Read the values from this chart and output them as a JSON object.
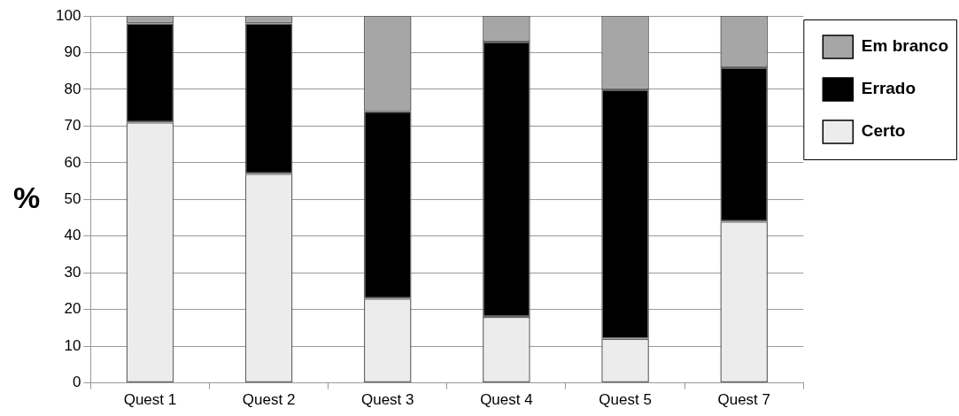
{
  "chart_data": {
    "type": "bar",
    "stacked": true,
    "ylabel": "%",
    "categories": [
      "Quest 1",
      "Quest 2",
      "Quest 3",
      "Quest 4",
      "Quest 5",
      "Quest 7"
    ],
    "series": [
      {
        "name": "Certo",
        "color": "#ececec",
        "values": [
          71,
          57,
          23,
          18,
          12,
          44
        ]
      },
      {
        "name": "Errado",
        "color": "#000000",
        "values": [
          27,
          41,
          51,
          75,
          68,
          42
        ]
      },
      {
        "name": "Em branco",
        "color": "#a6a6a6",
        "values": [
          2,
          2,
          26,
          7,
          20,
          14
        ]
      }
    ],
    "ylim": [
      0,
      100
    ],
    "yticks": [
      0,
      10,
      20,
      30,
      40,
      50,
      60,
      70,
      80,
      90,
      100
    ],
    "grid": "y",
    "legend": "right"
  }
}
